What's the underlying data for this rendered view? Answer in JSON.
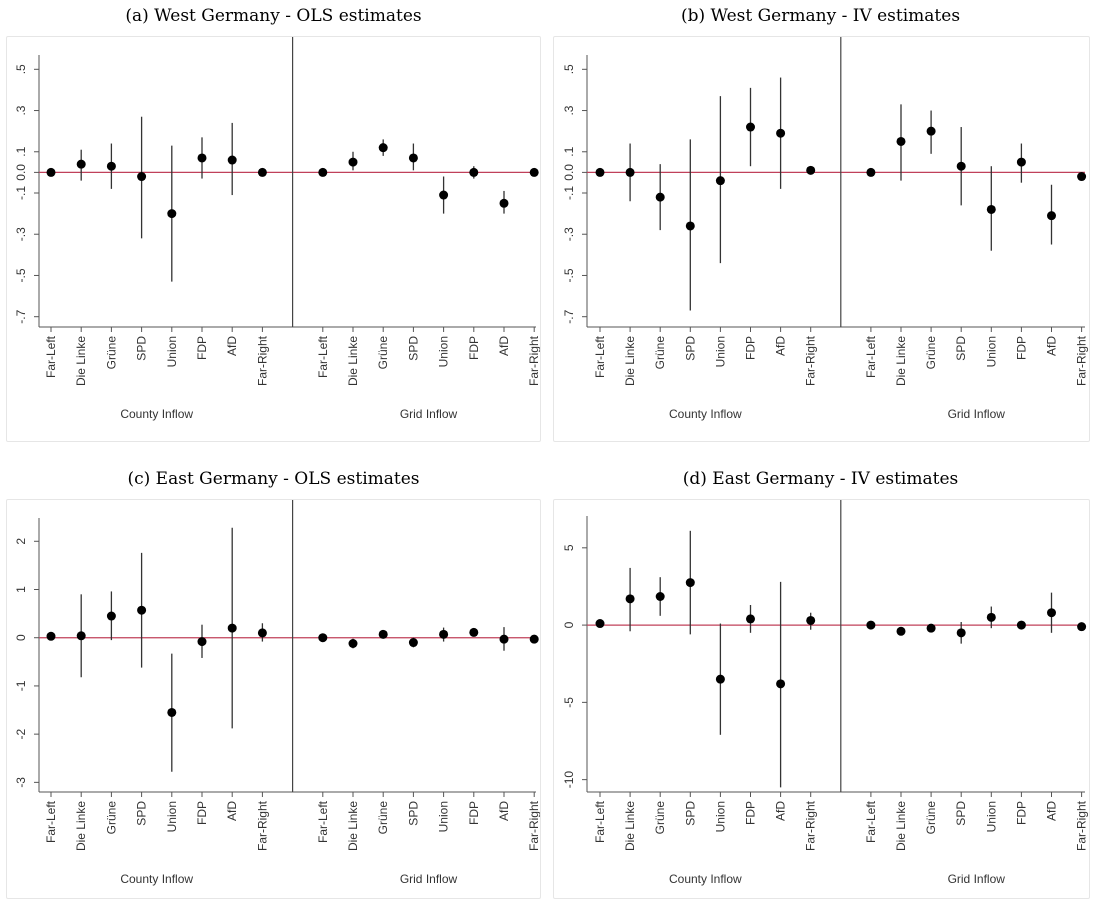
{
  "panels": [
    {
      "title": "(a) West Germany - OLS estimates"
    },
    {
      "title": "(b) West Germany - IV estimates"
    },
    {
      "title": "(c) East Germany - OLS estimates"
    },
    {
      "title": "(d) East Germany - IV estimates"
    }
  ],
  "colors": {
    "zero_line": "#c0405a",
    "marker": "#000000",
    "ci": "#333333"
  },
  "chart_data": [
    {
      "type": "scatter",
      "title": "(a) West Germany - OLS estimates",
      "groups": [
        "County Inflow",
        "Grid Inflow"
      ],
      "categories": [
        "Far-Left",
        "Die Linke",
        "Grüne",
        "SPD",
        "Union",
        "FDP",
        "AfD",
        "Far-Right"
      ],
      "ylim": [
        -0.75,
        0.55
      ],
      "yticks": [
        0.5,
        0.3,
        0.1,
        0.0,
        -0.1,
        -0.3,
        -0.5,
        -0.7
      ],
      "yticklabels": [
        ".5",
        ".3",
        ".1",
        "0.0",
        "-.1",
        "-.3",
        "-.5",
        "-.7"
      ],
      "series": [
        {
          "group": "County Inflow",
          "estimates": [
            0.0,
            0.04,
            0.03,
            -0.02,
            -0.2,
            0.07,
            0.06,
            0.0
          ],
          "ci_low": [
            null,
            -0.04,
            -0.08,
            -0.32,
            -0.53,
            -0.03,
            -0.11,
            null
          ],
          "ci_high": [
            null,
            0.11,
            0.14,
            0.27,
            0.13,
            0.17,
            0.24,
            null
          ]
        },
        {
          "group": "Grid Inflow",
          "estimates": [
            0.0,
            0.05,
            0.12,
            0.07,
            -0.11,
            0.0,
            -0.15,
            0.0
          ],
          "ci_low": [
            null,
            0.01,
            0.08,
            0.01,
            -0.2,
            -0.03,
            -0.2,
            null
          ],
          "ci_high": [
            null,
            0.1,
            0.16,
            0.14,
            -0.02,
            0.03,
            -0.09,
            null
          ]
        }
      ]
    },
    {
      "type": "scatter",
      "title": "(b) West Germany - IV estimates",
      "groups": [
        "County Inflow",
        "Grid Inflow"
      ],
      "categories": [
        "Far-Left",
        "Die Linke",
        "Grüne",
        "SPD",
        "Union",
        "FDP",
        "AfD",
        "Far-Right"
      ],
      "ylim": [
        -0.75,
        0.55
      ],
      "yticks": [
        0.5,
        0.3,
        0.1,
        0.0,
        -0.1,
        -0.3,
        -0.5,
        -0.7
      ],
      "yticklabels": [
        ".5",
        ".3",
        ".1",
        "0.0",
        "-.1",
        "-.3",
        "-.5",
        "-.7"
      ],
      "series": [
        {
          "group": "County Inflow",
          "estimates": [
            0.0,
            0.0,
            -0.12,
            -0.26,
            -0.04,
            0.22,
            0.19,
            0.01
          ],
          "ci_low": [
            null,
            -0.14,
            -0.28,
            -0.67,
            -0.44,
            0.03,
            -0.08,
            null
          ],
          "ci_high": [
            null,
            0.14,
            0.04,
            0.16,
            0.37,
            0.41,
            0.46,
            null
          ]
        },
        {
          "group": "Grid Inflow",
          "estimates": [
            0.0,
            0.15,
            0.2,
            0.03,
            -0.18,
            0.05,
            -0.21,
            -0.02
          ],
          "ci_low": [
            null,
            -0.04,
            0.09,
            -0.16,
            -0.38,
            -0.05,
            -0.35,
            null
          ],
          "ci_high": [
            null,
            0.33,
            0.3,
            0.22,
            0.03,
            0.14,
            -0.06,
            null
          ]
        }
      ]
    },
    {
      "type": "scatter",
      "title": "(c) East Germany - OLS estimates",
      "groups": [
        "County Inflow",
        "Grid Inflow"
      ],
      "categories": [
        "Far-Left",
        "Die Linke",
        "Grüne",
        "SPD",
        "Union",
        "FDP",
        "AfD",
        "Far-Right"
      ],
      "ylim": [
        -3.2,
        2.4
      ],
      "yticks": [
        2,
        1,
        0,
        -1,
        -2,
        -3
      ],
      "yticklabels": [
        "2",
        "1",
        "0",
        "-1",
        "-2",
        "-3"
      ],
      "series": [
        {
          "group": "County Inflow",
          "estimates": [
            0.03,
            0.04,
            0.45,
            0.57,
            -1.55,
            -0.08,
            0.2,
            0.1
          ],
          "ci_low": [
            null,
            -0.82,
            -0.05,
            -0.62,
            -2.78,
            -0.42,
            -1.88,
            -0.08
          ],
          "ci_high": [
            null,
            0.9,
            0.96,
            1.76,
            -0.33,
            0.27,
            2.28,
            0.3
          ]
        },
        {
          "group": "Grid Inflow",
          "estimates": [
            0.0,
            -0.12,
            0.07,
            -0.1,
            0.07,
            0.11,
            -0.03,
            -0.03
          ],
          "ci_low": [
            null,
            -0.22,
            null,
            -0.2,
            -0.08,
            null,
            -0.27,
            null
          ],
          "ci_high": [
            null,
            -0.02,
            null,
            0.0,
            0.21,
            null,
            0.22,
            null
          ]
        }
      ]
    },
    {
      "type": "scatter",
      "title": "(d) East Germany - IV estimates",
      "groups": [
        "County Inflow",
        "Grid Inflow"
      ],
      "categories": [
        "Far-Left",
        "Die Linke",
        "Grüne",
        "SPD",
        "Union",
        "FDP",
        "AfD",
        "Far-Right"
      ],
      "ylim": [
        -10.8,
        6.8
      ],
      "yticks": [
        5,
        0,
        -5,
        -10
      ],
      "yticklabels": [
        "5",
        "0",
        "-5",
        "-10"
      ],
      "series": [
        {
          "group": "County Inflow",
          "estimates": [
            0.1,
            1.7,
            1.85,
            2.75,
            -3.5,
            0.4,
            -3.8,
            0.3
          ],
          "ci_low": [
            null,
            -0.4,
            0.6,
            -0.6,
            -7.1,
            -0.5,
            -10.5,
            -0.3
          ],
          "ci_high": [
            null,
            3.7,
            3.1,
            6.1,
            0.1,
            1.3,
            2.8,
            0.8
          ]
        },
        {
          "group": "Grid Inflow",
          "estimates": [
            0.0,
            -0.4,
            -0.2,
            -0.5,
            0.5,
            0.0,
            0.8,
            -0.1
          ],
          "ci_low": [
            null,
            null,
            null,
            -1.2,
            -0.2,
            null,
            -0.5,
            null
          ],
          "ci_high": [
            null,
            null,
            null,
            0.2,
            1.2,
            null,
            2.1,
            null
          ]
        }
      ]
    }
  ]
}
